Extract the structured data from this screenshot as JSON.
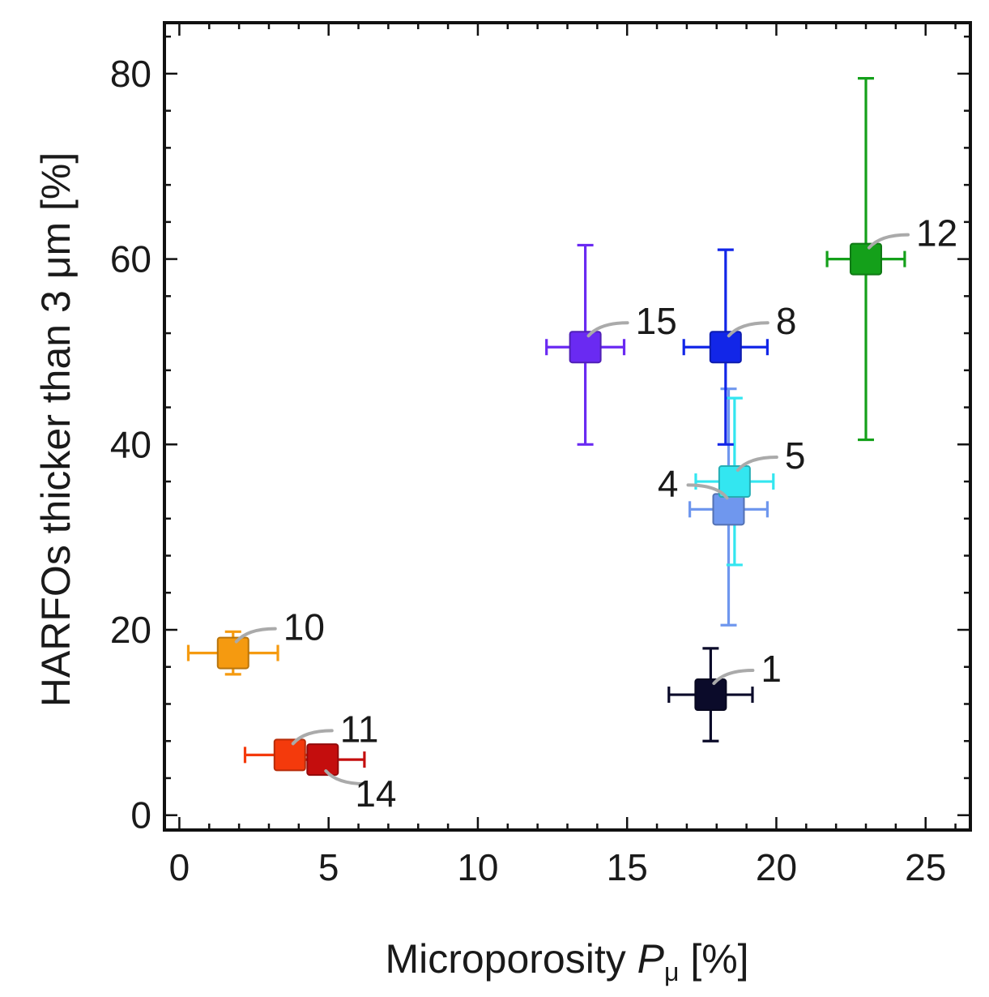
{
  "chart_data": {
    "type": "scatter",
    "xlabel": {
      "main": "Microporosity ",
      "var": "P",
      "sub": "μ",
      "unit": " [%]"
    },
    "ylabel": "HARFOs thicker than 3 μm [%]",
    "xlim": [
      -0.5,
      26.5
    ],
    "ylim": [
      -1.6,
      85.5
    ],
    "xticks": [
      0,
      5,
      10,
      15,
      20,
      25
    ],
    "yticks": [
      0,
      20,
      40,
      60,
      80
    ],
    "x_minor_step": 1,
    "y_minor_step": 4,
    "grid": false,
    "points": [
      {
        "label": "1",
        "x": 17.8,
        "y": 13.0,
        "xerr": 1.4,
        "yerr_low": 5.0,
        "yerr_high": 5.0,
        "color": "#0b0b2a",
        "label_side": "right",
        "label_dy": "up"
      },
      {
        "label": "4",
        "x": 18.4,
        "y": 33.0,
        "xerr": 1.3,
        "yerr_low": 12.5,
        "yerr_high": 13.0,
        "color": "#6f97ee",
        "label_side": "left",
        "label_dy": "up"
      },
      {
        "label": "5",
        "x": 18.6,
        "y": 36.0,
        "xerr": 1.3,
        "yerr_low": 9.0,
        "yerr_high": 9.0,
        "color": "#33e6f0",
        "label_side": "right",
        "label_dy": "up"
      },
      {
        "label": "8",
        "x": 18.3,
        "y": 50.5,
        "xerr": 1.4,
        "yerr_low": 10.5,
        "yerr_high": 10.5,
        "color": "#1226e8",
        "label_side": "right",
        "label_dy": "up"
      },
      {
        "label": "10",
        "x": 1.8,
        "y": 17.5,
        "xerr": 1.5,
        "yerr_low": 2.3,
        "yerr_high": 2.3,
        "color": "#f59a10",
        "label_side": "right",
        "label_dy": "up"
      },
      {
        "label": "11",
        "x": 3.7,
        "y": 6.5,
        "xerr": 1.5,
        "yerr_low": 1.5,
        "yerr_high": 1.5,
        "color": "#f43a0c",
        "label_side": "right",
        "label_dy": "up"
      },
      {
        "label": "12",
        "x": 23.0,
        "y": 60.0,
        "xerr": 1.3,
        "yerr_low": 19.5,
        "yerr_high": 19.5,
        "color": "#14a01a",
        "label_side": "right",
        "label_dy": "up"
      },
      {
        "label": "14",
        "x": 4.8,
        "y": 6.0,
        "xerr": 1.4,
        "yerr_low": 1.2,
        "yerr_high": 1.2,
        "color": "#c40d0d",
        "label_side": "right",
        "label_dy": "down"
      },
      {
        "label": "15",
        "x": 13.6,
        "y": 50.5,
        "xerr": 1.3,
        "yerr_low": 10.5,
        "yerr_high": 11.0,
        "color": "#6a2af2",
        "label_side": "right",
        "label_dy": "up"
      }
    ]
  }
}
